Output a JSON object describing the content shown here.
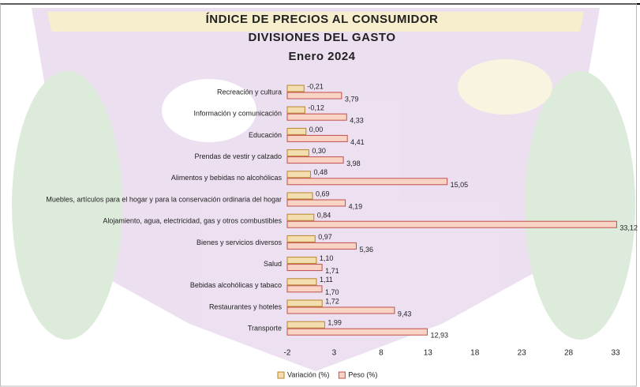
{
  "chart_data": {
    "type": "bar",
    "orientation": "horizontal",
    "title": "ÍNDICE DE PRECIOS AL CONSUMIDOR",
    "subtitle": "DIVISIONES DEL GASTO",
    "period": "Enero 2024",
    "categories": [
      "Recreación y cultura",
      "Información y comunicación",
      "Educación",
      "Prendas de vestir y calzado",
      "Alimentos y bebidas no alcohólicas",
      "Muebles, artículos para el hogar  y para la conservación ordinaria del hogar",
      "Alojamiento, agua, electricidad, gas y otros combustibles",
      "Bienes y servicios diversos",
      "Salud",
      "Bebidas alcohólicas y tabaco",
      "Restaurantes y hoteles",
      "Transporte"
    ],
    "series": [
      {
        "name": "Variación (%)",
        "color": "#f3deb0",
        "stroke": "#b8862b",
        "values": [
          -0.21,
          -0.12,
          0.0,
          0.3,
          0.48,
          0.69,
          0.84,
          0.97,
          1.1,
          1.11,
          1.72,
          1.99
        ],
        "value_labels": [
          "-0,21",
          "-0,12",
          "0,00",
          "0,30",
          "0,48",
          "0,69",
          "0,84",
          "0,97",
          "1,10",
          "1,11",
          "1,72",
          "1,99"
        ]
      },
      {
        "name": "Peso (%)",
        "color": "#f9d3c3",
        "stroke": "#c0504d",
        "values": [
          3.79,
          4.33,
          4.41,
          3.98,
          15.05,
          4.19,
          33.12,
          5.36,
          1.71,
          1.7,
          9.43,
          12.93
        ],
        "value_labels": [
          "3,79",
          "4,33",
          "4,41",
          "3,98",
          "15,05",
          "4,19",
          "33,12",
          "5,36",
          "1,71",
          "1,70",
          "9,43",
          "12,93"
        ]
      }
    ],
    "xlim": [
      -2,
      33
    ],
    "xticks": [
      -2,
      3,
      8,
      13,
      18,
      23,
      28,
      33
    ]
  }
}
